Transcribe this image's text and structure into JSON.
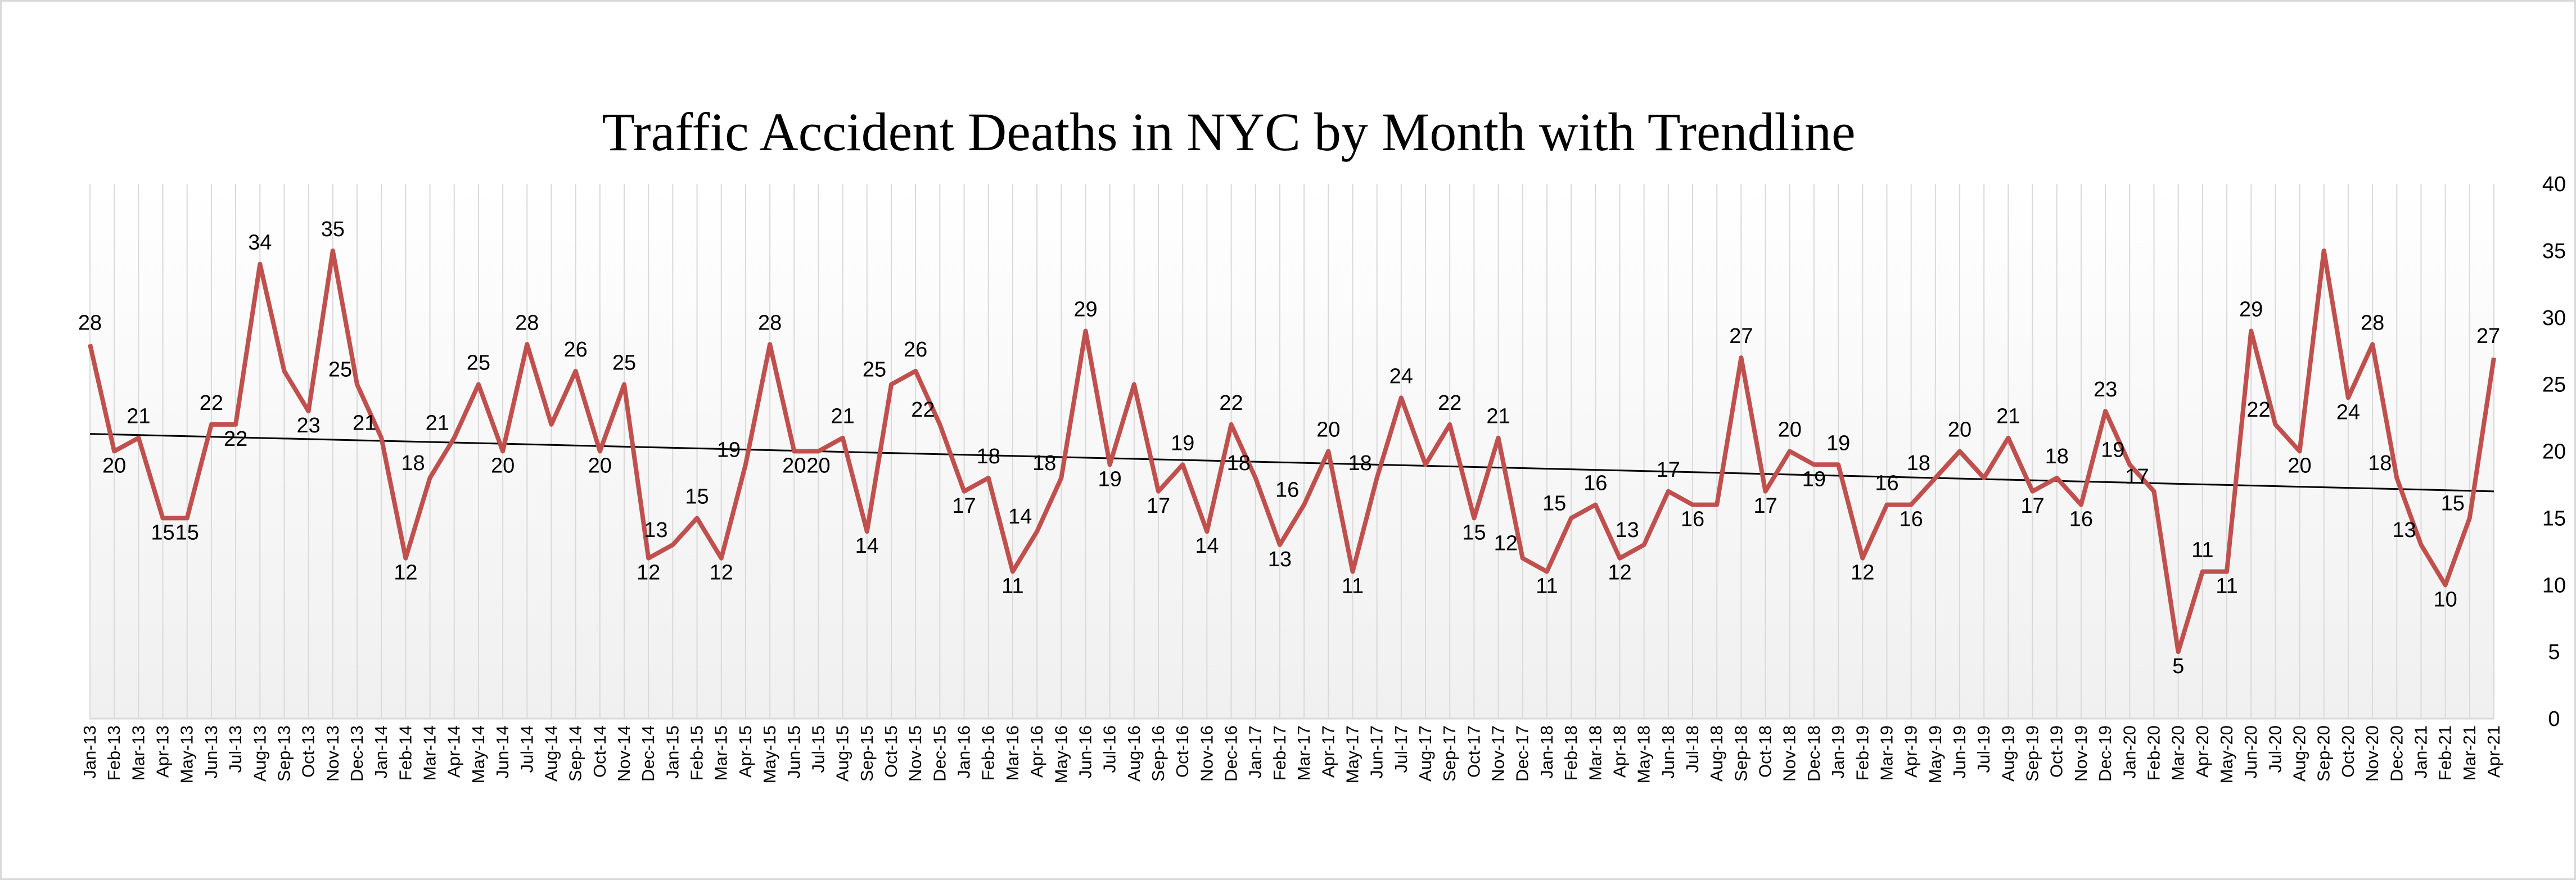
{
  "chart_data": {
    "type": "line",
    "title": "Traffic Accident Deaths in NYC  by Month with  Trendline",
    "xlabel": "",
    "ylabel": "",
    "ylim": [
      0,
      40
    ],
    "y_ticks": [
      0,
      5,
      10,
      15,
      20,
      25,
      30,
      35,
      40
    ],
    "y_axis_side": "right",
    "grid": "vertical",
    "legend": "none",
    "colors": {
      "line": "#c0504d",
      "trendline": "#000000",
      "gridline": "#d9d9d9",
      "background_top": "#ffffff",
      "background_bottom": "#f2f2f2"
    },
    "categories": [
      "Jan-13",
      "Feb-13",
      "Mar-13",
      "Apr-13",
      "May-13",
      "Jun-13",
      "Jul-13",
      "Aug-13",
      "Sep-13",
      "Oct-13",
      "Nov-13",
      "Dec-13",
      "Jan-14",
      "Feb-14",
      "Mar-14",
      "Apr-14",
      "May-14",
      "Jun-14",
      "Jul-14",
      "Aug-14",
      "Sep-14",
      "Oct-14",
      "Nov-14",
      "Dec-14",
      "Jan-15",
      "Feb-15",
      "Mar-15",
      "Apr-15",
      "May-15",
      "Jun-15",
      "Jul-15",
      "Aug-15",
      "Sep-15",
      "Oct-15",
      "Nov-15",
      "Dec-15",
      "Jan-16",
      "Feb-16",
      "Mar-16",
      "Apr-16",
      "May-16",
      "Jun-16",
      "Jul-16",
      "Aug-16",
      "Sep-16",
      "Oct-16",
      "Nov-16",
      "Dec-16",
      "Jan-17",
      "Feb-17",
      "Mar-17",
      "Apr-17",
      "May-17",
      "Jun-17",
      "Jul-17",
      "Aug-17",
      "Sep-17",
      "Oct-17",
      "Nov-17",
      "Dec-17",
      "Jan-18",
      "Feb-18",
      "Mar-18",
      "Apr-18",
      "May-18",
      "Jun-18",
      "Jul-18",
      "Aug-18",
      "Sep-18",
      "Oct-18",
      "Nov-18",
      "Dec-18",
      "Jan-19",
      "Feb-19",
      "Mar-19",
      "Apr-19",
      "May-19",
      "Jun-19",
      "Jul-19",
      "Aug-19",
      "Sep-19",
      "Oct-19",
      "Nov-19",
      "Dec-19",
      "Jan-20",
      "Feb-20",
      "Mar-20",
      "Apr-20",
      "May-20",
      "Jun-20",
      "Jul-20",
      "Aug-20",
      "Sep-20",
      "Oct-20",
      "Nov-20",
      "Dec-20",
      "Jan-21",
      "Feb-21",
      "Mar-21",
      "Apr-21"
    ],
    "series": [
      {
        "values": [
          28,
          20,
          21,
          15,
          15,
          22,
          22,
          34,
          26,
          23,
          35,
          25,
          21,
          12,
          18,
          21,
          25,
          20,
          28,
          22,
          26,
          20,
          25,
          12,
          13,
          15,
          12,
          19,
          28,
          20,
          20,
          21,
          14,
          25,
          26,
          22,
          17,
          18,
          11,
          14,
          18,
          29,
          19,
          25,
          17,
          19,
          14,
          22,
          18,
          13,
          16,
          20,
          11,
          18,
          24,
          19,
          22,
          15,
          21,
          12,
          11,
          15,
          16,
          12,
          13,
          17,
          16,
          16,
          27,
          17,
          20,
          19,
          19,
          12,
          16,
          16,
          18,
          20,
          18,
          21,
          17,
          18,
          16,
          23,
          19,
          17,
          5,
          11,
          11,
          29,
          22,
          20,
          35,
          24,
          28,
          18,
          13,
          10,
          15,
          27
        ],
        "data_labels": [
          "28",
          "20",
          "21",
          "15",
          "15",
          "22",
          "22",
          "34",
          "",
          "23",
          "35",
          "25",
          "21",
          "12",
          "18",
          "21",
          "25",
          "20",
          "28",
          "",
          "26",
          "20",
          "25",
          "12",
          "13",
          "15",
          "12",
          "19",
          "28",
          "20",
          "20",
          "21",
          "14",
          "25",
          "26",
          "22",
          "17",
          "18",
          "11",
          "14",
          "18",
          "29",
          "19",
          "",
          "17",
          "19",
          "14",
          "22",
          "18",
          "13",
          "16",
          "20",
          "11",
          "18",
          "24",
          "",
          "22",
          "15",
          "21",
          "12",
          "11",
          "15",
          "16",
          "12",
          "13",
          "17",
          "16",
          "",
          "27",
          "17",
          "20",
          "19",
          "19",
          "12",
          "16",
          "16",
          "18",
          "20",
          "",
          "21",
          "17",
          "18",
          "16",
          "23",
          "19",
          "17",
          "5",
          "11",
          "11",
          "29",
          "22",
          "20",
          "",
          "24",
          "28",
          "18",
          "13",
          "10",
          "15",
          "27"
        ]
      }
    ],
    "trendline": {
      "type": "linear",
      "start": 21.3,
      "end": 17.0
    }
  }
}
